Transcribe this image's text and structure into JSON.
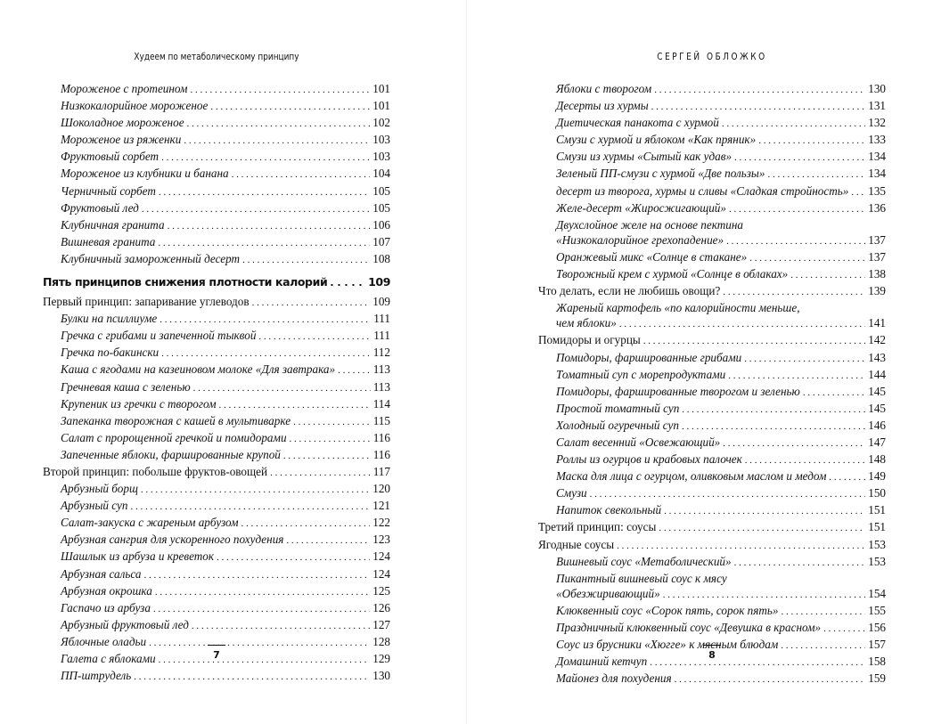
{
  "pages": [
    {
      "header": "Худеем по метаболическому принципу",
      "number": 7,
      "entries": [
        {
          "text": "Мороженое с протеином",
          "page": 101,
          "level": 2
        },
        {
          "text": "Низкокалорийное мороженое",
          "page": 101,
          "level": 2
        },
        {
          "text": "Шоколадное мороженое",
          "page": 102,
          "level": 2
        },
        {
          "text": "Мороженое из ряженки",
          "page": 103,
          "level": 2
        },
        {
          "text": "Фруктовый сорбет",
          "page": 103,
          "level": 2
        },
        {
          "text": "Мороженое из клубники и банана",
          "page": 104,
          "level": 2
        },
        {
          "text": "Черничный сорбет",
          "page": 105,
          "level": 2
        },
        {
          "text": "Фруктовый лед",
          "page": 105,
          "level": 2
        },
        {
          "text": "Клубничная гранита",
          "page": 106,
          "level": 2
        },
        {
          "text": "Вишневая гранита",
          "page": 107,
          "level": 2
        },
        {
          "text": "Клубничный замороженный десерт",
          "page": 108,
          "level": 2
        },
        {
          "text": "Пять принципов снижения плотности калорий",
          "page": 109,
          "level": 0
        },
        {
          "text": "Первый принцип: запаривание углеводов",
          "page": 109,
          "level": 1
        },
        {
          "text": "Булки на псиллиуме",
          "page": 111,
          "level": 2
        },
        {
          "text": "Гречка с грибами и запеченной тыквой",
          "page": 111,
          "level": 2
        },
        {
          "text": "Гречка по-бакински",
          "page": 112,
          "level": 2
        },
        {
          "text": "Каша с ягодами на казеиновом молоке «Для завтрака»",
          "page": 113,
          "level": 2
        },
        {
          "text": "Гречневая каша с зеленью",
          "page": 113,
          "level": 2
        },
        {
          "text": "Крупеник из гречки с творогом",
          "page": 114,
          "level": 2
        },
        {
          "text": "Запеканка творожная с кашей в мультиварке",
          "page": 115,
          "level": 2
        },
        {
          "text": "Салат с пророщенной гречкой и помидорами",
          "page": 116,
          "level": 2
        },
        {
          "text": "Запеченные яблоки, фаршированные крупой",
          "page": 116,
          "level": 2
        },
        {
          "text": "Второй принцип: побольше фруктов-овощей",
          "page": 117,
          "level": 1
        },
        {
          "text": "Арбузный борщ",
          "page": 120,
          "level": 2
        },
        {
          "text": "Арбузный суп",
          "page": 121,
          "level": 2
        },
        {
          "text": "Салат-закуска с жареным арбузом",
          "page": 122,
          "level": 2
        },
        {
          "text": "Арбузная сангрия для ускоренного похудения",
          "page": 123,
          "level": 2
        },
        {
          "text": "Шашлык из арбуза и креветок",
          "page": 124,
          "level": 2
        },
        {
          "text": "Арбузная сальса",
          "page": 124,
          "level": 2
        },
        {
          "text": "Арбузная окрошка",
          "page": 125,
          "level": 2
        },
        {
          "text": "Гаспачо из арбуза",
          "page": 126,
          "level": 2
        },
        {
          "text": "Арбузный фруктовый лед",
          "page": 127,
          "level": 2
        },
        {
          "text": "Яблочные оладьи",
          "page": 128,
          "level": 2
        },
        {
          "text": "Галета с яблоками",
          "page": 129,
          "level": 2
        },
        {
          "text": "ПП-штрудель",
          "page": 130,
          "level": 2
        }
      ]
    },
    {
      "header": "СЕРГЕЙ ОБЛОЖКО",
      "number": 8,
      "entries": [
        {
          "text": "Яблоки с творогом",
          "page": 130,
          "level": 2
        },
        {
          "text": "Десерты из хурмы",
          "page": 131,
          "level": 2
        },
        {
          "text": "Диетическая панакота с хурмой",
          "page": 132,
          "level": 2
        },
        {
          "text": "Смузи с хурмой и яблоком «Как пряник»",
          "page": 133,
          "level": 2
        },
        {
          "text": "Смузи из хурмы «Сытый как удав»",
          "page": 134,
          "level": 2
        },
        {
          "text": "Зеленый ПП-смузи с хурмой «Две пользы»",
          "page": 134,
          "level": 2
        },
        {
          "text": "десерт из творога, хурмы и сливы «Сладкая стройность»",
          "page": 135,
          "level": 2
        },
        {
          "text": "Желе-десерт «Жиросжигающий»",
          "page": 136,
          "level": 2
        },
        {
          "text": [
            "Двухслойное желе на основе пектина",
            "«Низкокалорийное грехопадение»"
          ],
          "page": 137,
          "level": 2
        },
        {
          "text": "Оранжевый микс «Солнце в стакане»",
          "page": 137,
          "level": 2
        },
        {
          "text": "Творожный крем с хурмой «Солнце в облаках»",
          "page": 138,
          "level": 2
        },
        {
          "text": "Что делать, если не любишь овощи?",
          "page": 139,
          "level": 1
        },
        {
          "text": [
            "Жареный картофель «по калорийности меньше,",
            "чем яблоки»"
          ],
          "page": 141,
          "level": 2
        },
        {
          "text": "Помидоры и огурцы",
          "page": 142,
          "level": 1
        },
        {
          "text": "Помидоры, фаршированные грибами",
          "page": 143,
          "level": 2
        },
        {
          "text": "Томатный суп с морепродуктами",
          "page": 144,
          "level": 2
        },
        {
          "text": "Помидоры, фаршированные творогом и зеленью",
          "page": 145,
          "level": 2
        },
        {
          "text": "Простой томатный суп",
          "page": 145,
          "level": 2
        },
        {
          "text": "Холодный огуречный суп",
          "page": 146,
          "level": 2
        },
        {
          "text": "Салат весенний «Освежающий»",
          "page": 147,
          "level": 2
        },
        {
          "text": "Роллы из огурцов и крабовых палочек",
          "page": 148,
          "level": 2
        },
        {
          "text": "Маска для лица с огурцом, оливковым маслом и медом",
          "page": 149,
          "level": 2
        },
        {
          "text": "Смузи",
          "page": 150,
          "level": 2
        },
        {
          "text": "Напиток свекольный",
          "page": 151,
          "level": 2
        },
        {
          "text": "Третий принцип: соусы",
          "page": 151,
          "level": 1
        },
        {
          "text": "Ягодные соусы",
          "page": 153,
          "level": 1
        },
        {
          "text": "Вишневый соус «Метаболический»",
          "page": 153,
          "level": 2
        },
        {
          "text": [
            "Пикантный вишневый соус к мясу",
            "«Обезжиривающий»"
          ],
          "page": 154,
          "level": 2
        },
        {
          "text": "Клюквенный соус «Сорок пять, сорок пять»",
          "page": 155,
          "level": 2
        },
        {
          "text": "Праздничный клюквенный соус «Девушка в красном»",
          "page": 156,
          "level": 2
        },
        {
          "text": "Соус из брусники «Хюгге» к мясным блюдам",
          "page": 157,
          "level": 2
        },
        {
          "text": "Домашний кетчуп",
          "page": 158,
          "level": 2
        },
        {
          "text": "Майонез для похудения",
          "page": 159,
          "level": 2
        }
      ]
    }
  ]
}
